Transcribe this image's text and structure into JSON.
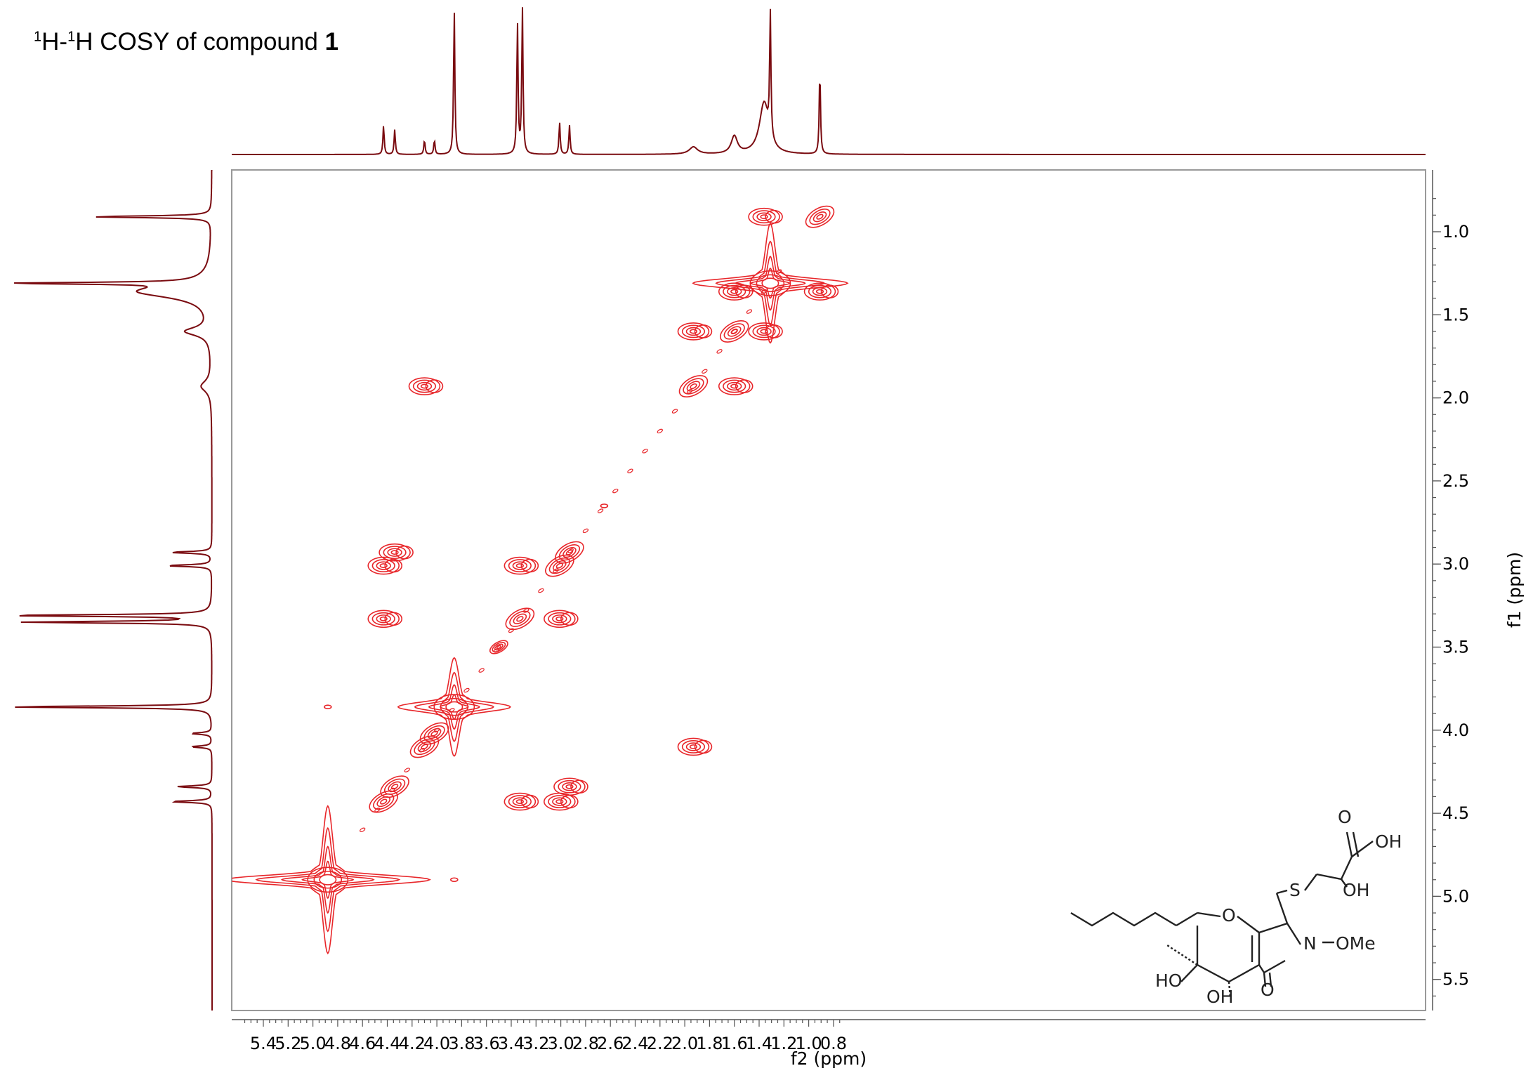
{
  "title": {
    "sup1": "1",
    "part1": "H-",
    "sup2": "1",
    "part2": "H COSY of compound ",
    "bold": "1"
  },
  "colors": {
    "contour": "#e8262a",
    "projection": "#7a0b10",
    "axis": "#555555",
    "text": "#000000"
  },
  "chart_data": {
    "type": "contour",
    "experiment": "1H-1H COSY",
    "xlabel": "f2 (ppm)",
    "ylabel": "f1 (ppm)",
    "xlim": [
      5.57,
      0.71
    ],
    "ylim": [
      0.78,
      5.72
    ],
    "x_ticks": [
      "5.4",
      "5.2",
      "5.0",
      "4.8",
      "4.6",
      "4.4",
      "4.2",
      "4.0",
      "3.8",
      "3.6",
      "3.4",
      "3.2",
      "3.0",
      "2.8",
      "2.6",
      "2.4",
      "2.2",
      "2.0",
      "1.8",
      "1.6",
      "1.4",
      "1.2",
      "1.0",
      "0.8"
    ],
    "y_ticks": [
      "1.0",
      "1.5",
      "2.0",
      "2.5",
      "3.0",
      "3.5",
      "4.0",
      "4.5",
      "5.0",
      "5.5"
    ],
    "projection_peaks_1d": [
      {
        "ppm": 4.43,
        "height": 0.2
      },
      {
        "ppm": 4.34,
        "height": 0.17
      },
      {
        "ppm": 4.1,
        "height": 0.1
      },
      {
        "ppm": 4.02,
        "height": 0.1
      },
      {
        "ppm": 3.86,
        "height": 1.0
      },
      {
        "ppm": 3.35,
        "height": 0.9
      },
      {
        "ppm": 3.31,
        "height": 1.0
      },
      {
        "ppm": 3.01,
        "height": 0.22
      },
      {
        "ppm": 2.93,
        "height": 0.2
      },
      {
        "ppm": 1.93,
        "height": 0.05
      },
      {
        "ppm": 1.6,
        "height": 0.12
      },
      {
        "ppm": 1.36,
        "height": 0.35
      },
      {
        "ppm": 1.31,
        "height": 0.85
      },
      {
        "ppm": 0.91,
        "height": 0.58
      }
    ],
    "cross_peaks": [
      {
        "f2": 4.88,
        "f1": 4.9,
        "kind": "diagonal-large"
      },
      {
        "f2": 3.86,
        "f1": 3.86,
        "kind": "diagonal-large"
      },
      {
        "f2": 1.31,
        "f1": 1.31,
        "kind": "diagonal-large"
      },
      {
        "f2": 4.43,
        "f1": 4.43,
        "kind": "diagonal"
      },
      {
        "f2": 4.34,
        "f1": 4.34,
        "kind": "diagonal"
      },
      {
        "f2": 4.1,
        "f1": 4.1,
        "kind": "diagonal"
      },
      {
        "f2": 4.02,
        "f1": 4.02,
        "kind": "diagonal"
      },
      {
        "f2": 3.5,
        "f1": 3.5,
        "kind": "diagonal-weak"
      },
      {
        "f2": 3.33,
        "f1": 3.33,
        "kind": "diagonal"
      },
      {
        "f2": 3.01,
        "f1": 3.01,
        "kind": "diagonal"
      },
      {
        "f2": 2.93,
        "f1": 2.93,
        "kind": "diagonal"
      },
      {
        "f2": 1.93,
        "f1": 1.93,
        "kind": "diagonal"
      },
      {
        "f2": 1.6,
        "f1": 1.6,
        "kind": "diagonal"
      },
      {
        "f2": 0.91,
        "f1": 0.91,
        "kind": "diagonal"
      },
      {
        "f2": 4.43,
        "f1": 3.01,
        "kind": "cross"
      },
      {
        "f2": 4.34,
        "f1": 2.93,
        "kind": "cross"
      },
      {
        "f2": 4.43,
        "f1": 3.33,
        "kind": "cross"
      },
      {
        "f2": 3.01,
        "f1": 4.43,
        "kind": "cross"
      },
      {
        "f2": 2.93,
        "f1": 4.34,
        "kind": "cross"
      },
      {
        "f2": 3.33,
        "f1": 4.43,
        "kind": "cross"
      },
      {
        "f2": 3.33,
        "f1": 3.01,
        "kind": "cross"
      },
      {
        "f2": 3.01,
        "f1": 3.33,
        "kind": "cross"
      },
      {
        "f2": 4.1,
        "f1": 1.93,
        "kind": "cross"
      },
      {
        "f2": 1.93,
        "f1": 4.1,
        "kind": "cross"
      },
      {
        "f2": 1.36,
        "f1": 0.91,
        "kind": "cross"
      },
      {
        "f2": 0.91,
        "f1": 1.36,
        "kind": "cross"
      },
      {
        "f2": 1.6,
        "f1": 1.36,
        "kind": "cross"
      },
      {
        "f2": 1.36,
        "f1": 1.6,
        "kind": "cross"
      },
      {
        "f2": 1.93,
        "f1": 1.6,
        "kind": "cross"
      },
      {
        "f2": 1.6,
        "f1": 1.93,
        "kind": "cross"
      },
      {
        "f2": 4.88,
        "f1": 3.86,
        "kind": "weak"
      },
      {
        "f2": 3.86,
        "f1": 4.9,
        "kind": "weak"
      },
      {
        "f2": 2.65,
        "f1": 2.65,
        "kind": "weak"
      }
    ]
  },
  "structure": {
    "labels": [
      "O",
      "OH",
      "S",
      "OH",
      "O",
      "N",
      "OMe",
      "HO",
      "OH",
      "O"
    ]
  }
}
